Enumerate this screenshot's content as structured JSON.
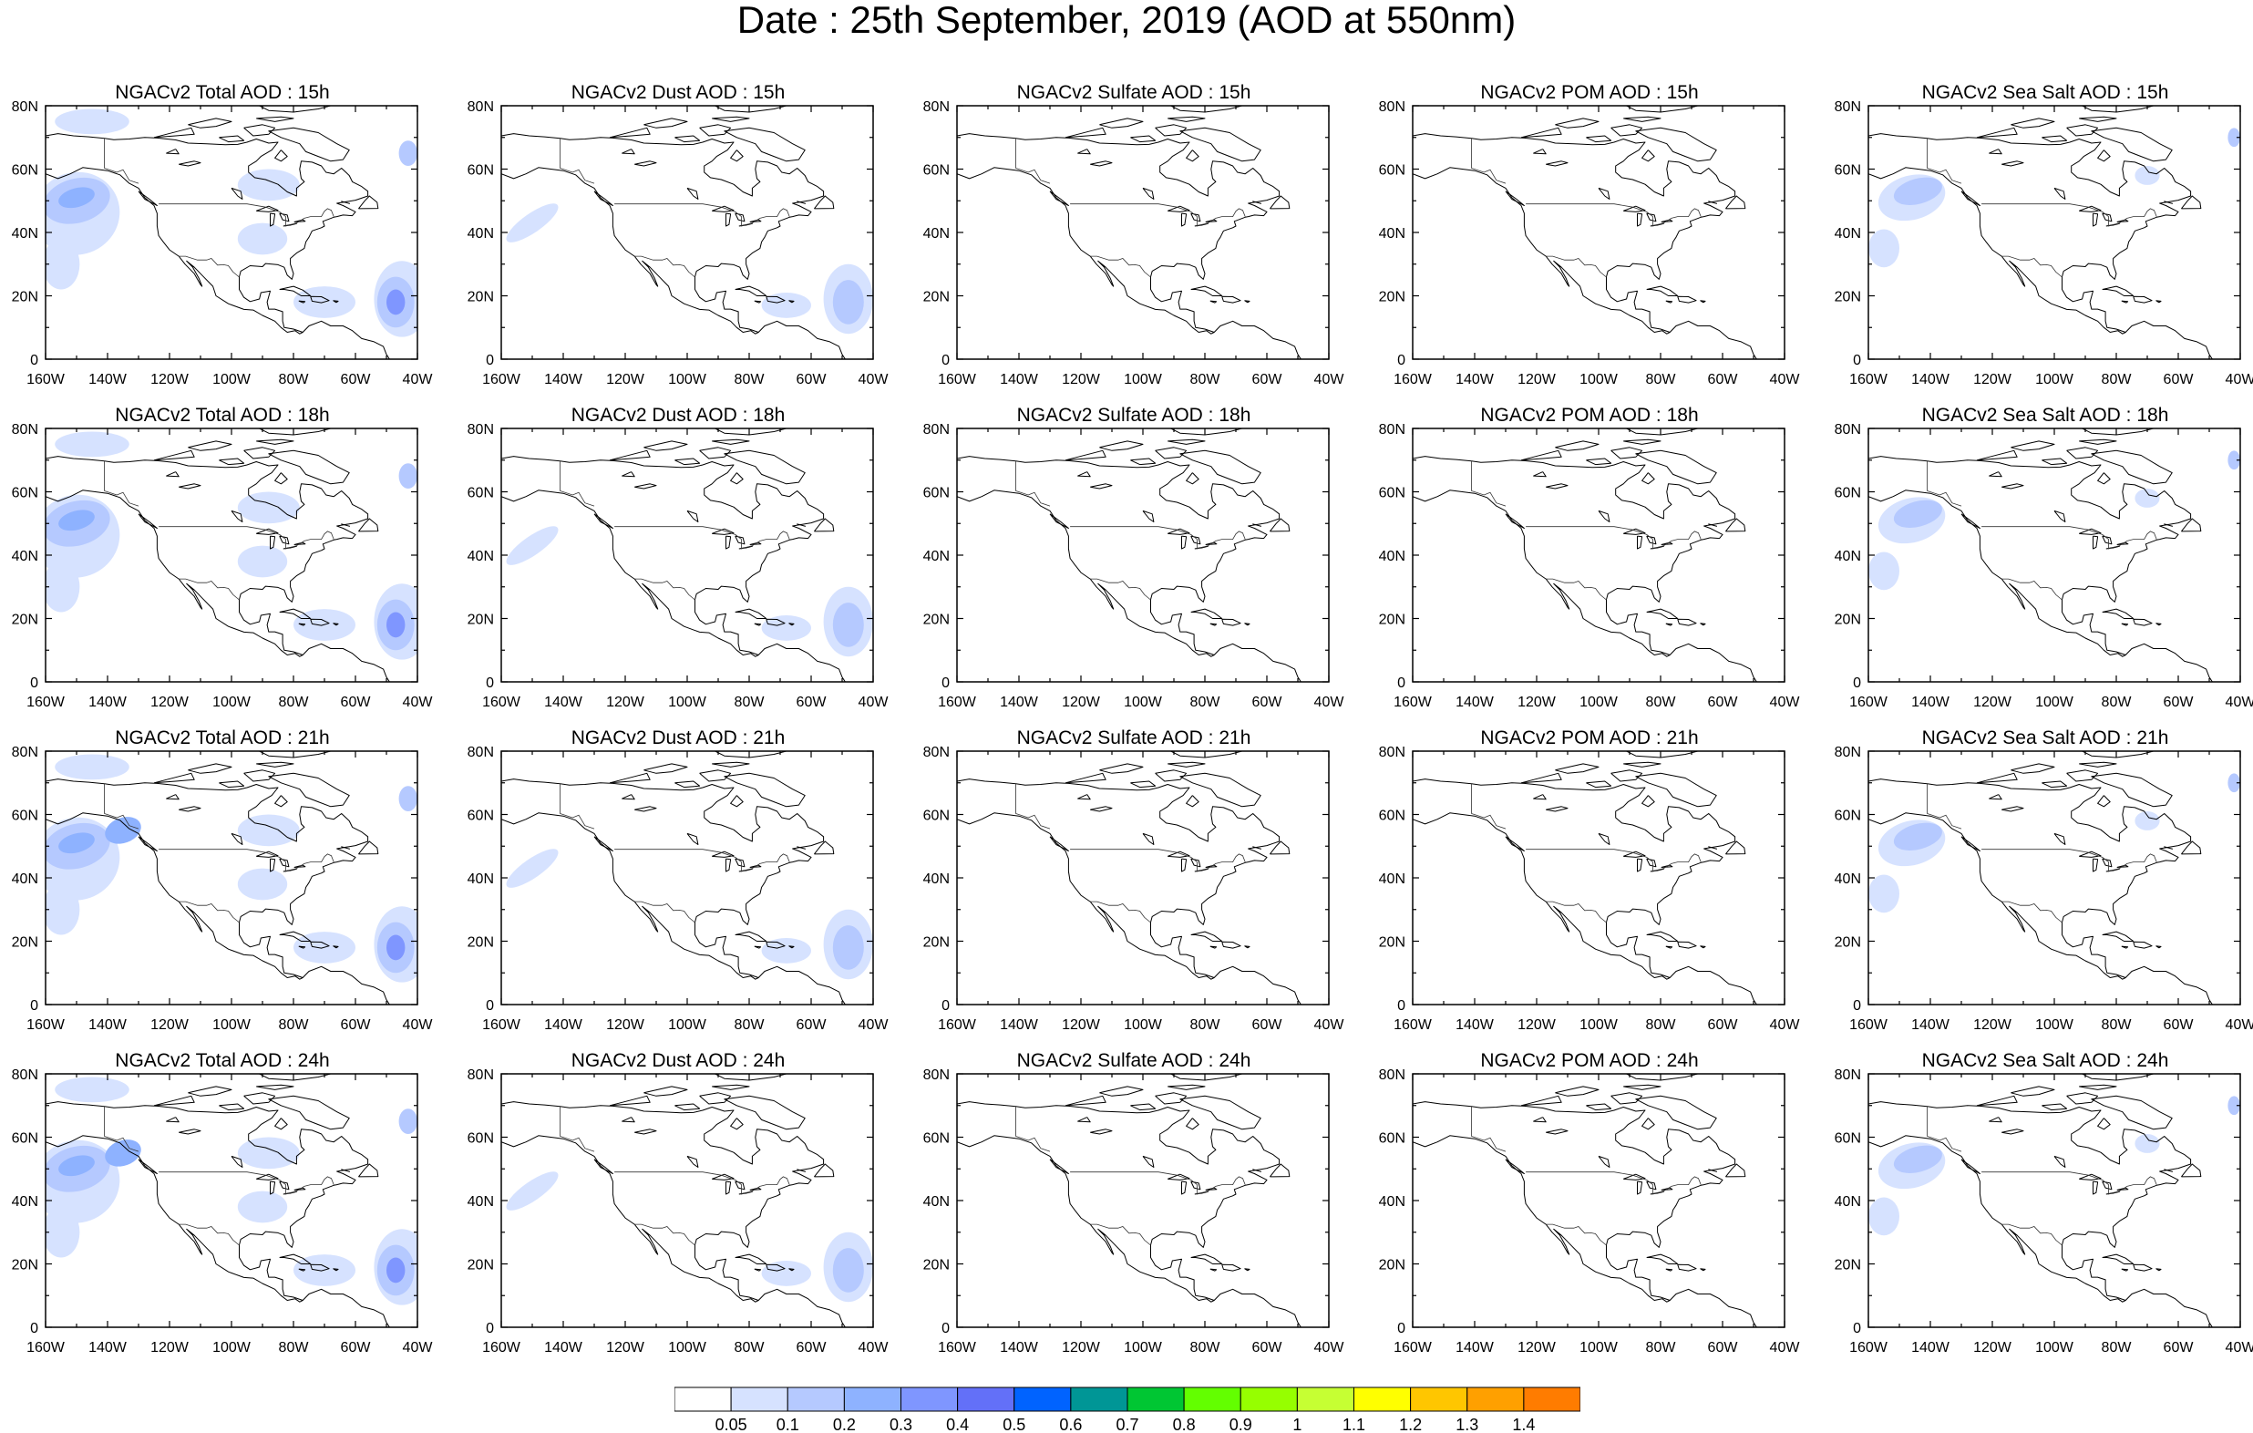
{
  "title": "Date : 25th September, 2019 (AOD at 550nm)",
  "map": {
    "lat_labels": [
      "0",
      "20N",
      "40N",
      "60N",
      "80N"
    ],
    "lon_labels": [
      "160W",
      "140W",
      "120W",
      "100W",
      "80W",
      "60W",
      "40W"
    ],
    "lat_range": [
      0,
      80
    ],
    "lon_range": [
      -160,
      -40
    ],
    "projection": "cylindrical equidistant"
  },
  "panels": [
    [
      "NGACv2 Total AOD : 15h",
      "NGACv2 Dust AOD : 15h",
      "NGACv2 Sulfate AOD : 15h",
      "NGACv2 POM AOD : 15h",
      "NGACv2 Sea Salt AOD : 15h"
    ],
    [
      "NGACv2 Total AOD : 18h",
      "NGACv2 Dust AOD : 18h",
      "NGACv2 Sulfate AOD : 18h",
      "NGACv2 POM AOD : 18h",
      "NGACv2 Sea Salt AOD : 18h"
    ],
    [
      "NGACv2 Total AOD : 21h",
      "NGACv2 Dust AOD : 21h",
      "NGACv2 Sulfate AOD : 21h",
      "NGACv2 POM AOD : 21h",
      "NGACv2 Sea Salt AOD : 21h"
    ],
    [
      "NGACv2 Total AOD : 24h",
      "NGACv2 Dust AOD : 24h",
      "NGACv2 Sulfate AOD : 24h",
      "NGACv2 POM AOD : 24h",
      "NGACv2 Sea Salt  AOD : 24h"
    ]
  ],
  "panel_types": [
    "total",
    "dust",
    "sulfate",
    "pom",
    "seasalt"
  ],
  "colorbar": {
    "labels": [
      "0.05",
      "0.1",
      "0.2",
      "0.3",
      "0.4",
      "0.5",
      "0.6",
      "0.7",
      "0.8",
      "0.9",
      "1",
      "1.1",
      "1.2",
      "1.3",
      "1.4"
    ],
    "colors": [
      "#ffffff",
      "#d6e2ff",
      "#b5c9ff",
      "#8eb2ff",
      "#7f96ff",
      "#6370f8",
      "#0063ff",
      "#009696",
      "#00c633",
      "#63ff00",
      "#96ff00",
      "#c6ff33",
      "#ffff00",
      "#ffc600",
      "#ffa000",
      "#ff7c00",
      "#ff1900"
    ]
  }
}
